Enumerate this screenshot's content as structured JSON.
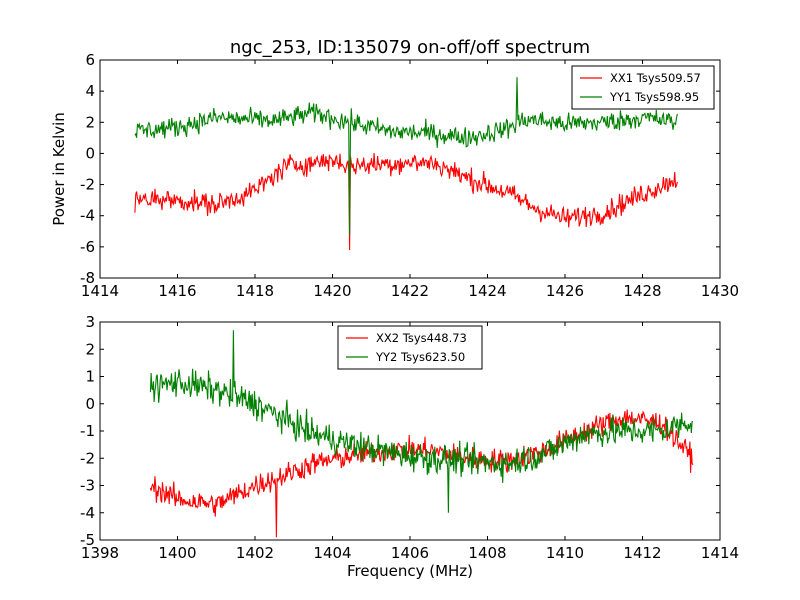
{
  "figure": {
    "title": "ngc_253, ID:135079 on-off/off spectrum"
  },
  "chart_data": [
    {
      "type": "line",
      "title": "ngc_253, ID:135079 on-off/off spectrum",
      "xlabel": "",
      "ylabel": "Power in Kelvin",
      "xlim": [
        1414,
        1430
      ],
      "ylim": [
        -8,
        6
      ],
      "xticks": [
        1414,
        1416,
        1418,
        1420,
        1422,
        1424,
        1426,
        1428,
        1430
      ],
      "yticks": [
        -8,
        -6,
        -4,
        -2,
        0,
        2,
        4,
        6
      ],
      "x_range": [
        1414.9,
        1428.9
      ],
      "legend_position": "upper-right",
      "grid": false,
      "series": [
        {
          "name": "XX1 Tsys509.57",
          "color": "#ff0000",
          "noise": 0.9,
          "trend": [
            [
              1414.9,
              -3.0
            ],
            [
              1416.0,
              -3.0
            ],
            [
              1417.0,
              -3.3
            ],
            [
              1418.0,
              -2.4
            ],
            [
              1418.8,
              -0.8
            ],
            [
              1419.5,
              -0.6
            ],
            [
              1420.0,
              -0.4
            ],
            [
              1420.45,
              -0.8
            ],
            [
              1421.0,
              -0.7
            ],
            [
              1422.0,
              -0.6
            ],
            [
              1422.6,
              -0.6
            ],
            [
              1423.5,
              -1.6
            ],
            [
              1424.5,
              -2.5
            ],
            [
              1425.3,
              -3.6
            ],
            [
              1426.0,
              -4.2
            ],
            [
              1427.0,
              -3.8
            ],
            [
              1428.0,
              -2.6
            ],
            [
              1428.9,
              -1.6
            ]
          ],
          "spikes": [
            [
              1420.45,
              -6.2
            ]
          ]
        },
        {
          "name": "YY1 Tsys598.95",
          "color": "#008000",
          "noise": 0.85,
          "trend": [
            [
              1414.9,
              1.4
            ],
            [
              1416.0,
              1.7
            ],
            [
              1417.0,
              2.3
            ],
            [
              1418.5,
              2.1
            ],
            [
              1419.5,
              2.6
            ],
            [
              1420.45,
              2.0
            ],
            [
              1421.5,
              1.4
            ],
            [
              1422.5,
              1.3
            ],
            [
              1423.5,
              1.0
            ],
            [
              1424.5,
              1.6
            ],
            [
              1425.0,
              2.2
            ],
            [
              1426.0,
              1.9
            ],
            [
              1427.0,
              2.0
            ],
            [
              1428.0,
              2.3
            ],
            [
              1428.9,
              2.0
            ]
          ],
          "spikes": [
            [
              1420.45,
              -5.2
            ],
            [
              1424.75,
              4.9
            ]
          ]
        }
      ]
    },
    {
      "type": "line",
      "title": "",
      "xlabel": "Frequency (MHz)",
      "ylabel": "",
      "xlim": [
        1398,
        1414
      ],
      "ylim": [
        -5,
        3
      ],
      "xticks": [
        1398,
        1400,
        1402,
        1404,
        1406,
        1408,
        1410,
        1412,
        1414
      ],
      "yticks": [
        -5,
        -4,
        -3,
        -2,
        -1,
        0,
        1,
        2,
        3
      ],
      "x_range": [
        1399.3,
        1413.3
      ],
      "legend_position": "upper-center",
      "grid": false,
      "series": [
        {
          "name": "XX2 Tsys448.73",
          "color": "#ff0000",
          "noise": 0.55,
          "trend": [
            [
              1399.3,
              -3.0
            ],
            [
              1400.0,
              -3.5
            ],
            [
              1401.0,
              -3.7
            ],
            [
              1402.0,
              -3.0
            ],
            [
              1402.8,
              -2.6
            ],
            [
              1403.5,
              -2.2
            ],
            [
              1404.5,
              -1.9
            ],
            [
              1405.5,
              -1.7
            ],
            [
              1406.5,
              -1.7
            ],
            [
              1407.5,
              -2.0
            ],
            [
              1408.5,
              -2.1
            ],
            [
              1409.5,
              -1.7
            ],
            [
              1410.5,
              -1.0
            ],
            [
              1411.5,
              -0.5
            ],
            [
              1412.5,
              -0.7
            ],
            [
              1413.3,
              -2.0
            ]
          ],
          "spikes": [
            [
              1402.55,
              -4.9
            ]
          ]
        },
        {
          "name": "YY2 Tsys623.50",
          "color": "#008000",
          "noise": 0.7,
          "trend": [
            [
              1399.3,
              0.6
            ],
            [
              1400.0,
              0.8
            ],
            [
              1401.0,
              0.5
            ],
            [
              1402.0,
              0.0
            ],
            [
              1402.8,
              -0.6
            ],
            [
              1403.5,
              -1.1
            ],
            [
              1404.5,
              -1.5
            ],
            [
              1405.5,
              -1.8
            ],
            [
              1406.5,
              -2.0
            ],
            [
              1407.5,
              -2.1
            ],
            [
              1408.5,
              -2.2
            ],
            [
              1409.5,
              -1.8
            ],
            [
              1410.5,
              -1.1
            ],
            [
              1411.5,
              -1.0
            ],
            [
              1412.5,
              -1.0
            ],
            [
              1413.3,
              -0.6
            ]
          ],
          "spikes": [
            [
              1401.45,
              2.7
            ],
            [
              1407.0,
              -4.0
            ]
          ]
        }
      ]
    }
  ]
}
